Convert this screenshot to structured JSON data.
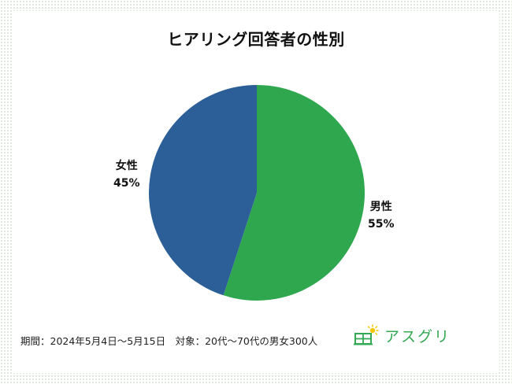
{
  "chart_data": {
    "type": "pie",
    "title": "ヒアリング回答者の性別",
    "slices": [
      {
        "label": "男性",
        "value": 55,
        "value_label": "55%",
        "color": "#2ea74f"
      },
      {
        "label": "女性",
        "value": 45,
        "value_label": "45%",
        "color": "#2c5e97"
      }
    ],
    "start": "top",
    "direction": "clockwise"
  },
  "footnote": "期間：2024年5月4日～5月15日　対象：20代～70代の男女300人",
  "brand": {
    "name": "アスグリ",
    "icon": "house-sun-logo-icon",
    "color": "#34a853"
  }
}
